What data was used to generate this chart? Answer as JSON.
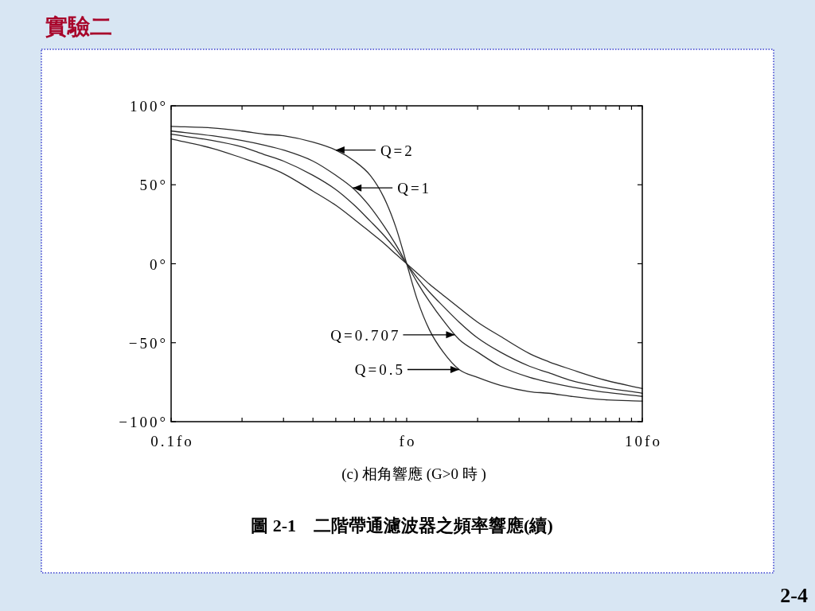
{
  "chart_data": {
    "type": "line",
    "title": "實驗二",
    "xlabel": "(c) 相角響應 (G>0 時 )",
    "x": [
      0.1,
      0.15,
      0.2,
      0.25,
      0.3,
      0.4,
      0.5,
      0.6,
      0.7,
      0.8,
      0.9,
      1,
      1.11,
      1.25,
      1.43,
      1.67,
      2,
      2.5,
      3.33,
      4,
      5,
      6.67,
      10
    ],
    "series": [
      {
        "color": "#2b2b2b",
        "values": [
          87,
          86,
          84,
          82,
          81,
          77,
          72,
          65,
          56,
          42,
          23,
          0,
          -23,
          -42,
          -56,
          -67,
          -72,
          -77,
          -81,
          -82,
          -84,
          -86,
          -87
        ]
      },
      {
        "color": "#2b2b2b",
        "values": [
          84,
          81,
          78,
          75,
          72,
          65,
          56,
          47,
          36,
          24,
          12,
          0,
          -12,
          -24,
          -36,
          -48,
          -56,
          -65,
          -72,
          -75,
          -78,
          -81,
          -84
        ]
      },
      {
        "color": "#2b2b2b",
        "values": [
          82,
          78,
          74,
          69,
          65,
          56,
          47,
          37,
          27,
          18,
          9,
          0,
          -9,
          -18,
          -27,
          -37,
          -47,
          -56,
          -65,
          -69,
          -74,
          -78,
          -82
        ]
      },
      {
        "color": "#2b2b2b",
        "values": [
          79,
          73,
          67,
          62,
          57,
          46,
          37,
          28,
          20,
          13,
          6,
          0,
          -6,
          -13,
          -20,
          -28,
          -37,
          -46,
          -57,
          -62,
          -67,
          -73,
          -79
        ]
      }
    ],
    "xlim": [
      0.1,
      10
    ],
    "ylim": [
      -100,
      100
    ],
    "log": "x",
    "xticks": [
      {
        "value": 0.1,
        "label": "0.1fo"
      },
      {
        "value": 0.2,
        "label": null
      },
      {
        "value": 0.3,
        "label": null
      },
      {
        "value": 0.4,
        "label": null
      },
      {
        "value": 0.5,
        "label": null
      },
      {
        "value": 0.6,
        "label": null
      },
      {
        "value": 0.7,
        "label": null
      },
      {
        "value": 0.8,
        "label": null
      },
      {
        "value": 0.9,
        "label": null
      },
      {
        "value": 1,
        "label": "fo"
      },
      {
        "value": 2,
        "label": null
      },
      {
        "value": 3,
        "label": null
      },
      {
        "value": 4,
        "label": null
      },
      {
        "value": 5,
        "label": null
      },
      {
        "value": 6,
        "label": null
      },
      {
        "value": 7,
        "label": null
      },
      {
        "value": 8,
        "label": null
      },
      {
        "value": 9,
        "label": null
      },
      {
        "value": 10,
        "label": "10fo"
      }
    ],
    "yticks": [
      {
        "value": 100,
        "label": "100°"
      },
      {
        "value": 50,
        "label": "50°"
      },
      {
        "value": 0,
        "label": "0°"
      },
      {
        "value": -50,
        "label": "−50°"
      },
      {
        "value": -100,
        "label": "−100°"
      }
    ],
    "annotations": [
      {
        "text": "Q=2",
        "x": 0.5,
        "y": 72
      },
      {
        "text": "Q=1",
        "x": 0.59,
        "y": 48
      },
      {
        "text": "Q=0.707",
        "x": 1.6,
        "y": -45
      },
      {
        "text": "Q=0.5",
        "x": 1.67,
        "y": -67
      },
      "圖 2-1　二階帶通濾波器之頻率響應(續)",
      "2-4"
    ]
  }
}
